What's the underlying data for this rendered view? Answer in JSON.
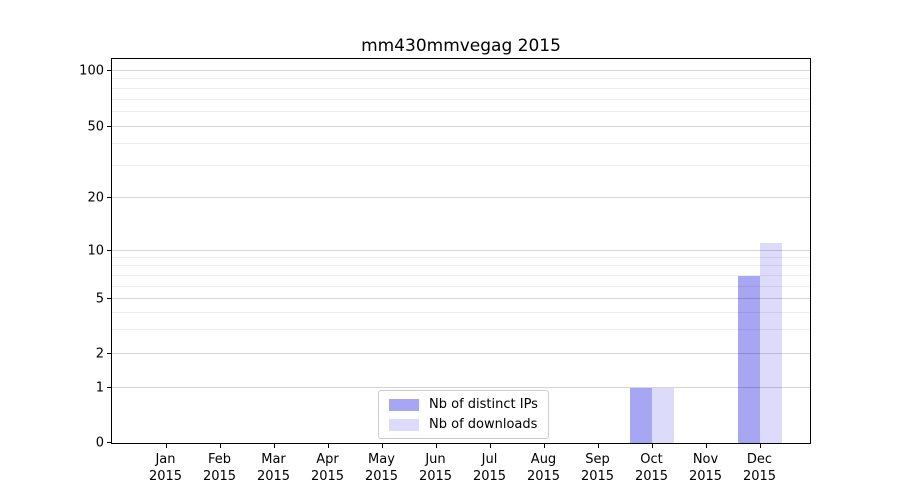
{
  "title": "mm430mmvegag 2015",
  "chart_data": {
    "type": "bar",
    "title": "mm430mmvegag 2015",
    "categories": [
      "Jan",
      "Feb",
      "Mar",
      "Apr",
      "May",
      "Jun",
      "Jul",
      "Aug",
      "Sep",
      "Oct",
      "Nov",
      "Dec"
    ],
    "x_tick_year": "2015",
    "series": [
      {
        "name": "Nb of distinct IPs",
        "color": "#a6a6f2",
        "values": [
          0,
          0,
          0,
          0,
          0,
          0,
          0,
          0,
          0,
          1,
          0,
          7
        ]
      },
      {
        "name": "Nb of downloads",
        "color": "#dcdcfa",
        "values": [
          0,
          0,
          0,
          0,
          0,
          0,
          0,
          0,
          0,
          1,
          0,
          11
        ]
      }
    ],
    "y_axis": {
      "scale": "symlog-like",
      "range": [
        0,
        100
      ],
      "ticks": [
        {
          "value": 0,
          "frac": 0.0
        },
        {
          "value": 1,
          "frac": 0.1429
        },
        {
          "value": 2,
          "frac": 0.2312
        },
        {
          "value": 5,
          "frac": 0.374
        },
        {
          "value": 10,
          "frac": 0.5013
        },
        {
          "value": 20,
          "frac": 0.639
        },
        {
          "value": 50,
          "frac": 0.8234
        },
        {
          "value": 100,
          "frac": 0.9688
        }
      ],
      "minor_fracs": [
        0.9468,
        0.9221,
        0.8941,
        0.8616,
        0.7785,
        0.7205,
        0.4818,
        0.4603,
        0.4358,
        0.4075,
        0.3392,
        0.2943
      ]
    },
    "grid": true,
    "legend": {
      "position": "lower center",
      "entries": [
        "Nb of distinct IPs",
        "Nb of downloads"
      ]
    },
    "colors": {
      "major_grid": "#d4d4d4",
      "minor_grid": "#ebebeb",
      "spine": "#000000",
      "background": "#ffffff"
    }
  }
}
